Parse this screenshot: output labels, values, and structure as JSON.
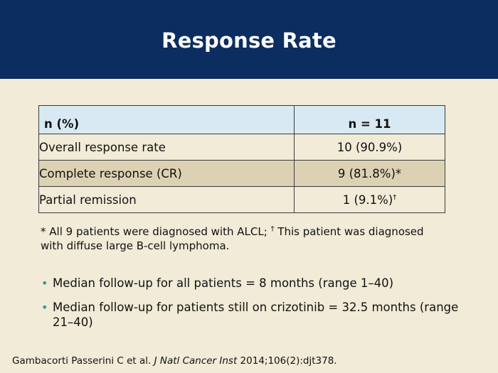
{
  "slide": {
    "title": "Response Rate"
  },
  "table": {
    "header": {
      "col1": "n (%)",
      "col2": "n = 11"
    },
    "rows": [
      {
        "label": "Overall response rate",
        "value": "10 (90.9%)",
        "mark": ""
      },
      {
        "label": "Complete response (CR)",
        "value": "9 (81.8%)*",
        "mark": ""
      },
      {
        "label": "Partial remission",
        "value": "1 (9.1%)",
        "mark": "†"
      }
    ]
  },
  "footnote": {
    "part1": "* All 9 patients were diagnosed with ALCL; ",
    "dagger": "†",
    "part2": " This patient was diagnosed with diffuse large B-cell lymphoma."
  },
  "bullets": [
    "Median follow-up for all patients = 8 months (range 1–40)",
    "Median follow-up for patients still on crizotinib = 32.5 months (range 21–40)"
  ],
  "citation": {
    "authors": "Gambacorti Passerini C et al. ",
    "journal": "J Natl Cancer Inst",
    "details": " 2014;106(2):djt378."
  },
  "colors": {
    "header_bg": "#0b2d5f",
    "page_bg": "#f1ebd7",
    "table_header_bg": "#d8e9f3",
    "shaded_row_bg": "#dcd2b3",
    "bullet": "#2a9d8f"
  }
}
